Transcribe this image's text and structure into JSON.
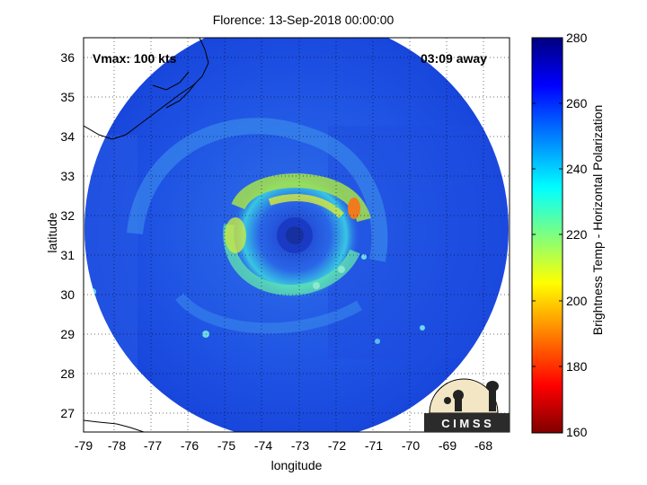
{
  "title": "Florence: 13-Sep-2018 00:00:00",
  "xlabel": "longitude",
  "ylabel": "latitude",
  "annotations": {
    "vmax": "Vmax: 100 kts",
    "time_away": "03:09 away"
  },
  "logo": {
    "text": "C I M S S",
    "icon": "cimss-logo-icon"
  },
  "x_ticks": [
    "-79",
    "-78",
    "-77",
    "-76",
    "-75",
    "-74",
    "-73",
    "-72",
    "-71",
    "-70",
    "-69",
    "-68"
  ],
  "y_ticks": [
    "36",
    "35",
    "34",
    "33",
    "32",
    "31",
    "30",
    "29",
    "28",
    "27"
  ],
  "colorbar": {
    "label": "Brightness Temp - Horizontal Polarization",
    "ticks": [
      "280",
      "260",
      "240",
      "220",
      "200",
      "180",
      "160"
    ],
    "range": [
      160,
      280
    ],
    "colormap": "jet"
  },
  "map": {
    "lon_range": [
      -79.1,
      -67.2
    ],
    "lat_range": [
      26.5,
      36.6
    ],
    "storm_center": {
      "lon": -73.1,
      "lat": 31.5
    },
    "colors": {
      "background": "#1c4fe2",
      "eyewall": "#9be14d",
      "warm_spot": "#f07a1d",
      "land": "#ffffff",
      "coastline": "#000000"
    }
  }
}
